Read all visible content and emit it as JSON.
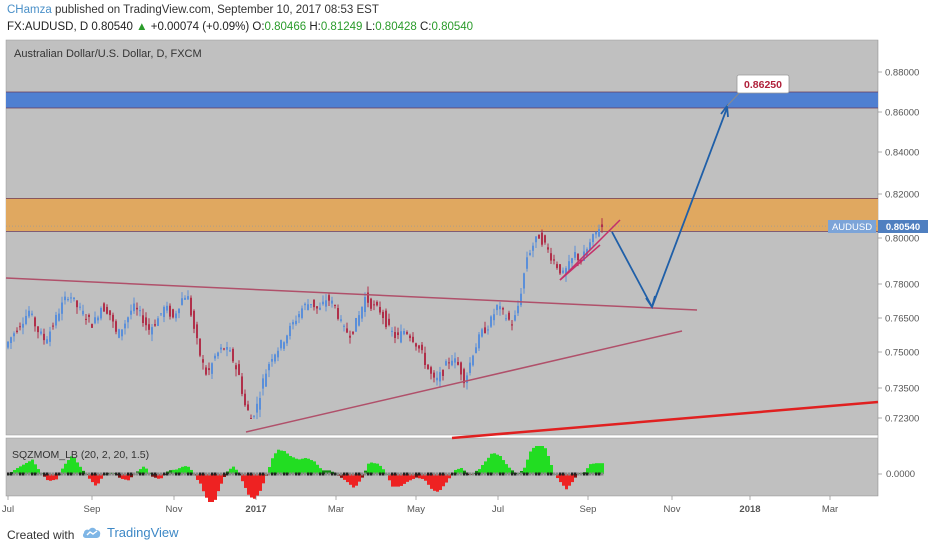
{
  "header": {
    "author": "CHamza",
    "published": "published on TradingView.com, September 10, 2017 08:53 EST",
    "symbol": "FX:AUDUSD, D",
    "last": "0.80540",
    "change_arrow": "▲",
    "change": "+0.00074 (+0.09%)",
    "o_label": "O:",
    "o": "0.80466",
    "h_label": "H:",
    "h": "0.81249",
    "l_label": "L:",
    "l": "0.80428",
    "c_label": "C:",
    "c": "0.80540"
  },
  "chart_data": [
    {
      "type": "candlestick",
      "title": "Australian Dollar/U.S. Dollar, D, FXCM",
      "y_ticks": [
        "0.88000",
        "0.86000",
        "0.84000",
        "0.82000",
        "0.80000",
        "0.78000",
        "0.76500",
        "0.75000",
        "0.73500",
        "0.72300"
      ],
      "y_tick_values": [
        0.88,
        0.86,
        0.84,
        0.82,
        0.8,
        0.78,
        0.765,
        0.75,
        0.735,
        0.723
      ],
      "x_ticks": [
        "Jul",
        "Sep",
        "Nov",
        "2017",
        "Mar",
        "May",
        "Jul",
        "Sep",
        "Nov",
        "2018",
        "Mar"
      ],
      "price_tag": {
        "label": "AUDUSD",
        "value": "0.80540",
        "y": 0.8054
      },
      "target_label": {
        "value": "0.86250",
        "y": 0.8625
      },
      "zones": [
        {
          "name": "resistance-zone",
          "from": 0.862,
          "to": 0.87,
          "color": "#4f7fd1"
        },
        {
          "name": "supply-zone",
          "from": 0.803,
          "to": 0.818,
          "color": "#e0a860"
        }
      ],
      "price_path": [
        [
          0,
          0.752
        ],
        [
          8,
          0.758
        ],
        [
          16,
          0.763
        ],
        [
          24,
          0.768
        ],
        [
          32,
          0.76
        ],
        [
          40,
          0.755
        ],
        [
          48,
          0.762
        ],
        [
          56,
          0.77
        ],
        [
          64,
          0.776
        ],
        [
          72,
          0.77
        ],
        [
          80,
          0.766
        ],
        [
          88,
          0.762
        ],
        [
          96,
          0.77
        ],
        [
          104,
          0.768
        ],
        [
          112,
          0.757
        ],
        [
          120,
          0.763
        ],
        [
          128,
          0.77
        ],
        [
          136,
          0.766
        ],
        [
          144,
          0.76
        ],
        [
          152,
          0.764
        ],
        [
          160,
          0.77
        ],
        [
          168,
          0.765
        ],
        [
          176,
          0.773
        ],
        [
          182,
          0.776
        ],
        [
          190,
          0.758
        ],
        [
          196,
          0.747
        ],
        [
          202,
          0.74
        ],
        [
          210,
          0.748
        ],
        [
          218,
          0.752
        ],
        [
          226,
          0.749
        ],
        [
          234,
          0.74
        ],
        [
          240,
          0.728
        ],
        [
          246,
          0.723
        ],
        [
          252,
          0.728
        ],
        [
          258,
          0.738
        ],
        [
          266,
          0.748
        ],
        [
          274,
          0.752
        ],
        [
          282,
          0.758
        ],
        [
          290,
          0.764
        ],
        [
          298,
          0.77
        ],
        [
          306,
          0.772
        ],
        [
          314,
          0.768
        ],
        [
          322,
          0.774
        ],
        [
          330,
          0.77
        ],
        [
          338,
          0.76
        ],
        [
          346,
          0.758
        ],
        [
          354,
          0.766
        ],
        [
          360,
          0.774
        ],
        [
          368,
          0.77
        ],
        [
          376,
          0.768
        ],
        [
          384,
          0.76
        ],
        [
          392,
          0.756
        ],
        [
          400,
          0.76
        ],
        [
          408,
          0.756
        ],
        [
          416,
          0.75
        ],
        [
          424,
          0.742
        ],
        [
          430,
          0.737
        ],
        [
          438,
          0.742
        ],
        [
          446,
          0.748
        ],
        [
          454,
          0.744
        ],
        [
          460,
          0.738
        ],
        [
          468,
          0.75
        ],
        [
          476,
          0.758
        ],
        [
          484,
          0.762
        ],
        [
          492,
          0.77
        ],
        [
          500,
          0.766
        ],
        [
          508,
          0.762
        ],
        [
          514,
          0.772
        ],
        [
          518,
          0.782
        ],
        [
          522,
          0.792
        ],
        [
          528,
          0.797
        ],
        [
          534,
          0.801
        ],
        [
          540,
          0.797
        ],
        [
          546,
          0.792
        ],
        [
          552,
          0.788
        ],
        [
          558,
          0.784
        ],
        [
          564,
          0.788
        ],
        [
          570,
          0.793
        ],
        [
          576,
          0.79
        ],
        [
          582,
          0.795
        ],
        [
          588,
          0.8
        ],
        [
          594,
          0.805
        ]
      ],
      "momentum": {
        "title": "SQZMOM_LB (20, 2, 20, 1.5)",
        "y_tick": "0.0000",
        "y_tick_value": 0.0
      }
    }
  ],
  "footer": {
    "created_with": "Created with",
    "brand": "TradingView"
  }
}
